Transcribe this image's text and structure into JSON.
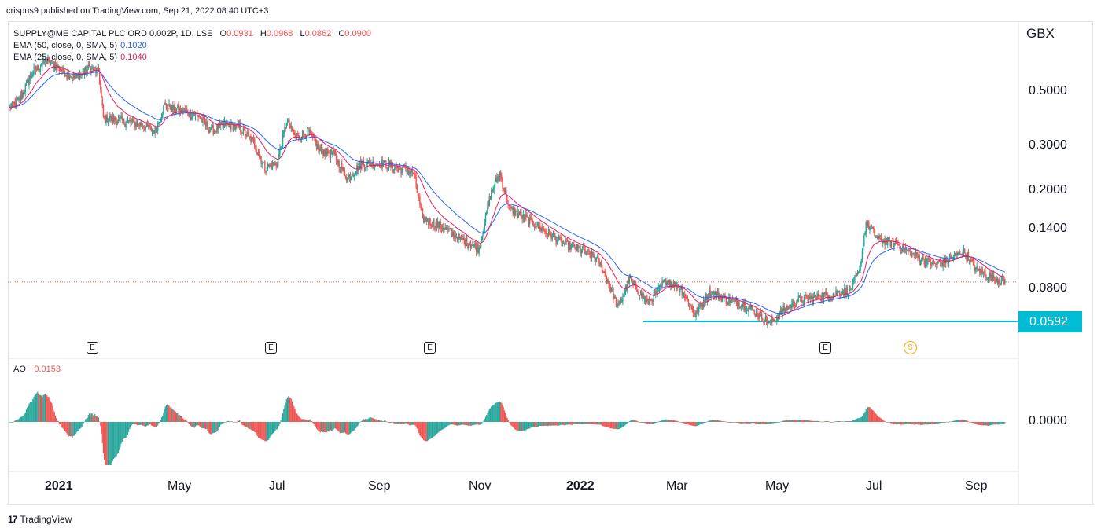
{
  "header": {
    "publisher": "crispus9 published on TradingView.com, Sep 21, 2022 08:40 UTC+3"
  },
  "legend": {
    "symbol": "SUPPLY@ME CAPITAL PLC ORD 0.002P, 1D, LSE",
    "ohlc": [
      {
        "k": "O",
        "v": "0.0931"
      },
      {
        "k": "H",
        "v": "0.0968"
      },
      {
        "k": "L",
        "v": "0.0862"
      },
      {
        "k": "C",
        "v": "0.0900"
      }
    ],
    "ema50": {
      "label": "EMA (50, close, 0, SMA, 5)",
      "value": "0.1020",
      "color": "#2962ff"
    },
    "ema25": {
      "label": "EMA (25, close, 0, SMA, 5)",
      "value": "0.1040",
      "color": "#e91e63"
    }
  },
  "axis": {
    "currency": "GBX",
    "price_ticks": [
      "0.5000",
      "0.3000",
      "0.2000",
      "0.1400",
      "0.0800"
    ],
    "support_value": "0.0592",
    "ao_tick": "0.0000",
    "x_ticks": [
      "2021",
      "May",
      "Jul",
      "Sep",
      "Nov",
      "2022",
      "Mar",
      "May",
      "Jul",
      "Sep"
    ]
  },
  "events": [
    "E",
    "E",
    "E",
    "E",
    "S"
  ],
  "ao": {
    "label": "AO",
    "value": "−0.0153"
  },
  "footer": {
    "brand": "TradingView",
    "logo": "17"
  },
  "colors": {
    "up": "#26a69a",
    "down": "#ef5350",
    "support": "#00bcd4",
    "ema50": "#2962ff",
    "ema25": "#e91e63"
  },
  "chart_data": {
    "type": "candlestick",
    "title": "SUPPLY@ME CAPITAL PLC ORD 0.002P, 1D, LSE",
    "scale": "log",
    "ylim": [
      0.052,
      0.68
    ],
    "anchors": [
      [
        0,
        0.4
      ],
      [
        10,
        0.43
      ],
      [
        25,
        0.55
      ],
      [
        40,
        0.61
      ],
      [
        55,
        0.56
      ],
      [
        70,
        0.52
      ],
      [
        85,
        0.57
      ],
      [
        95,
        0.55
      ],
      [
        100,
        0.37
      ],
      [
        120,
        0.36
      ],
      [
        140,
        0.35
      ],
      [
        155,
        0.33
      ],
      [
        165,
        0.41
      ],
      [
        185,
        0.39
      ],
      [
        200,
        0.38
      ],
      [
        215,
        0.33
      ],
      [
        230,
        0.35
      ],
      [
        245,
        0.34
      ],
      [
        260,
        0.3
      ],
      [
        272,
        0.24
      ],
      [
        285,
        0.25
      ],
      [
        295,
        0.36
      ],
      [
        305,
        0.31
      ],
      [
        318,
        0.33
      ],
      [
        330,
        0.28
      ],
      [
        345,
        0.27
      ],
      [
        360,
        0.22
      ],
      [
        375,
        0.25
      ],
      [
        395,
        0.25
      ],
      [
        415,
        0.24
      ],
      [
        430,
        0.23
      ],
      [
        440,
        0.155
      ],
      [
        460,
        0.145
      ],
      [
        480,
        0.13
      ],
      [
        500,
        0.12
      ],
      [
        512,
        0.19
      ],
      [
        522,
        0.23
      ],
      [
        532,
        0.17
      ],
      [
        550,
        0.155
      ],
      [
        570,
        0.14
      ],
      [
        590,
        0.125
      ],
      [
        610,
        0.118
      ],
      [
        625,
        0.11
      ],
      [
        635,
        0.095
      ],
      [
        648,
        0.072
      ],
      [
        660,
        0.092
      ],
      [
        680,
        0.075
      ],
      [
        700,
        0.092
      ],
      [
        715,
        0.085
      ],
      [
        730,
        0.068
      ],
      [
        745,
        0.083
      ],
      [
        765,
        0.077
      ],
      [
        780,
        0.075
      ],
      [
        795,
        0.069
      ],
      [
        810,
        0.063
      ],
      [
        825,
        0.071
      ],
      [
        840,
        0.077
      ],
      [
        860,
        0.079
      ],
      [
        880,
        0.082
      ],
      [
        895,
        0.084
      ],
      [
        905,
        0.098
      ],
      [
        912,
        0.15
      ],
      [
        925,
        0.13
      ],
      [
        945,
        0.125
      ],
      [
        965,
        0.112
      ],
      [
        985,
        0.105
      ],
      [
        1000,
        0.108
      ],
      [
        1015,
        0.118
      ],
      [
        1030,
        0.1
      ],
      [
        1045,
        0.094
      ],
      [
        1060,
        0.09
      ]
    ],
    "ema50_last": 0.102,
    "ema25_last": 0.104,
    "support_level": 0.0592,
    "last_close": 0.09,
    "ao_last": -0.0153
  }
}
